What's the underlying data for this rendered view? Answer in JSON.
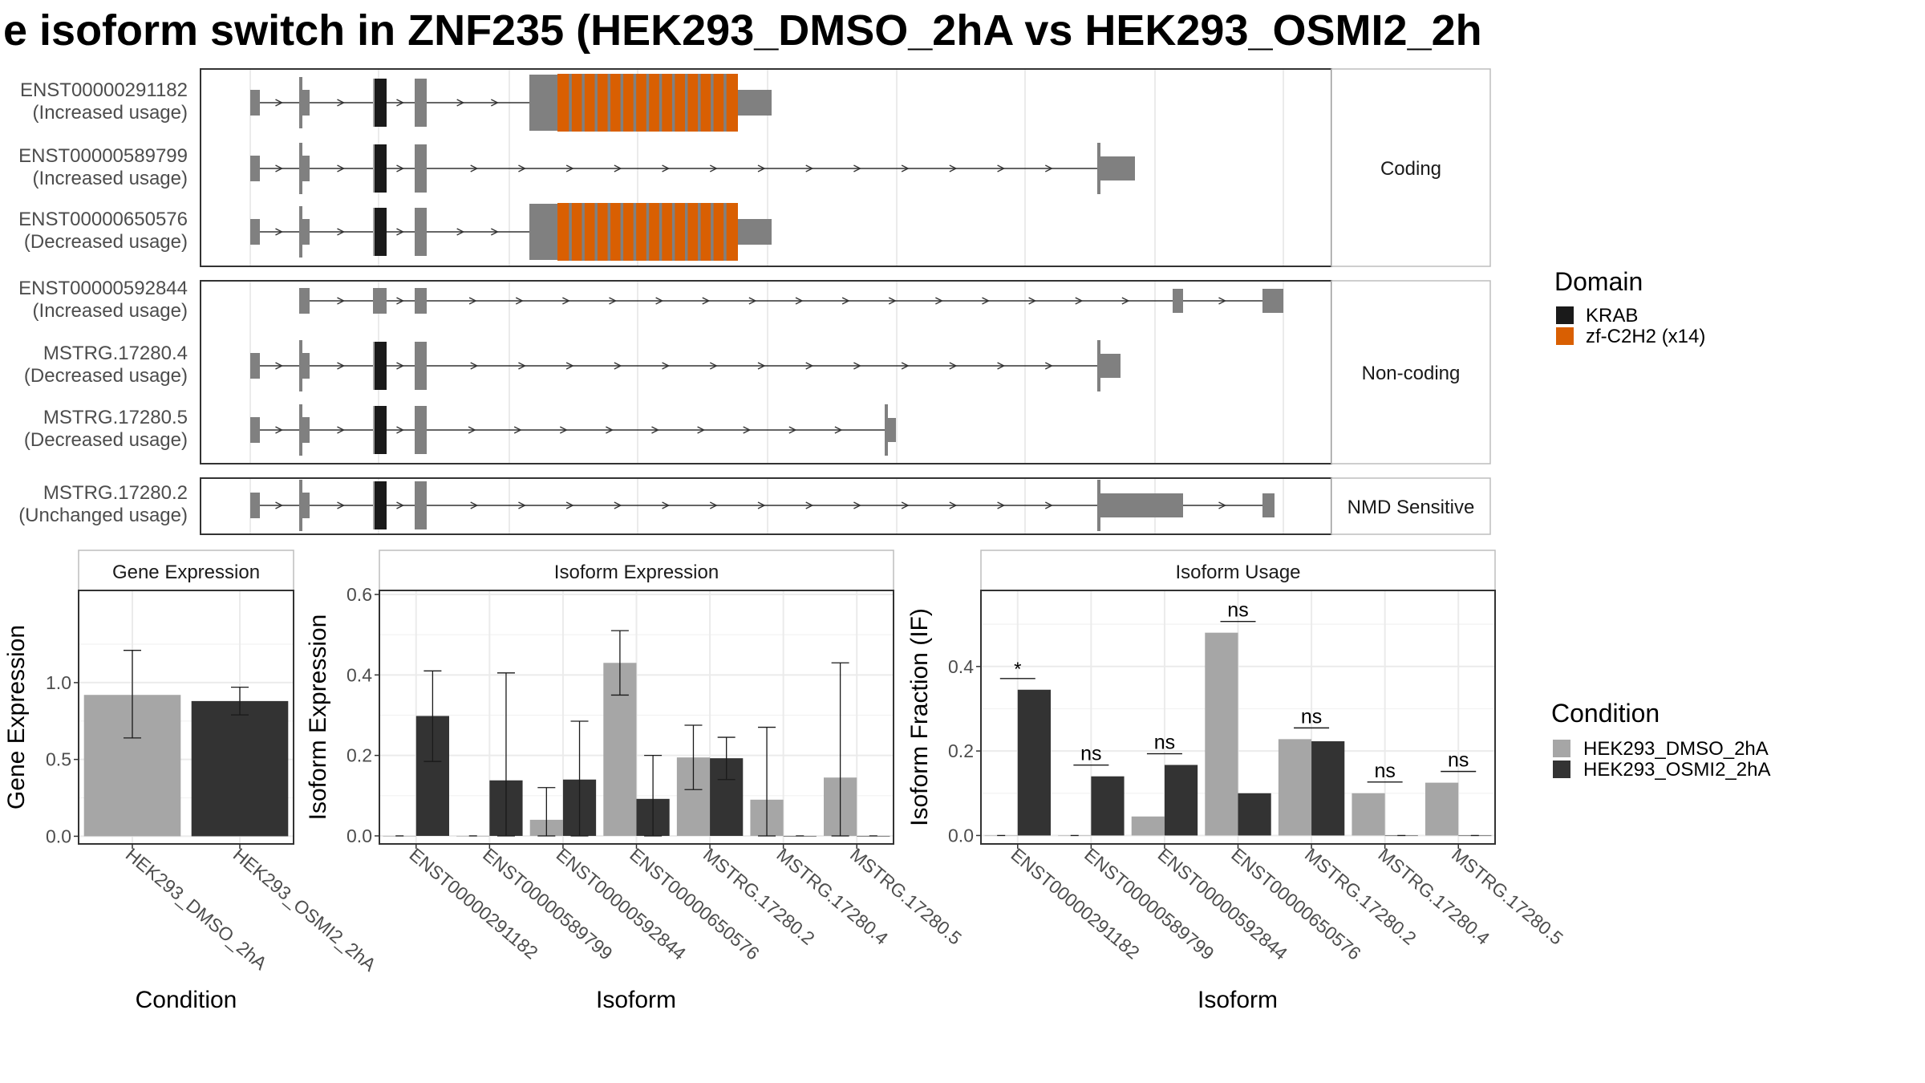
{
  "title": "e isoform switch in ZNF235 (HEK293_DMSO_2hA vs HEK293_OSMI2_2h",
  "colors": {
    "exon": "#808080",
    "krab": "#1a1a1a",
    "zf": "#d95f02",
    "dmso": "#a6a6a6",
    "osmi": "#333333",
    "panel_border": "#333333",
    "grid": "#ebebeb",
    "strip_bg": "#ffffff"
  },
  "structure": {
    "groups": [
      {
        "label": "Coding",
        "transcripts": [
          {
            "id": "ENST00000291182",
            "usage": "(Increased usage)",
            "end": "long",
            "domains": true
          },
          {
            "id": "ENST00000589799",
            "usage": "(Increased usage)",
            "end": "far",
            "domains": false
          },
          {
            "id": "ENST00000650576",
            "usage": "(Decreased usage)",
            "end": "long",
            "domains": true
          }
        ]
      },
      {
        "label": "Non-coding",
        "transcripts": [
          {
            "id": "ENST00000592844",
            "usage": "(Increased usage)",
            "end": "592844",
            "domains": false
          },
          {
            "id": "MSTRG.17280.4",
            "usage": "(Decreased usage)",
            "end": "far_short",
            "domains": false
          },
          {
            "id": "MSTRG.17280.5",
            "usage": "(Decreased usage)",
            "end": "mid",
            "domains": false
          }
        ]
      },
      {
        "label": "NMD Sensitive",
        "transcripts": [
          {
            "id": "MSTRG.17280.2",
            "usage": "(Unchanged usage)",
            "end": "nmd",
            "domains": false
          }
        ]
      }
    ],
    "legend_title": "Domain",
    "legend": [
      {
        "label": "KRAB",
        "color": "#1a1a1a"
      },
      {
        "label": "zf-C2H2 (x14)",
        "color": "#d95f02"
      }
    ]
  },
  "condition_legend": {
    "title": "Condition",
    "items": [
      {
        "label": "HEK293_DMSO_2hA",
        "color": "#a6a6a6"
      },
      {
        "label": "HEK293_OSMI2_2hA",
        "color": "#333333"
      }
    ]
  },
  "chart_data": [
    {
      "type": "bar",
      "strip": "Gene Expression",
      "xlabel": "Condition",
      "ylabel": "Gene Expression",
      "ylim": [
        -0.05,
        1.6
      ],
      "yticks": [
        0.0,
        0.5,
        1.0
      ],
      "ytick_labels": [
        "0.0",
        "0.5",
        "1.0"
      ],
      "categories": [
        "HEK293_DMSO_2hA",
        "HEK293_OSMI2_2hA"
      ],
      "series": [
        {
          "values": [
            0.92,
            0.88
          ],
          "err_low": [
            0.64,
            0.79
          ],
          "err_high": [
            1.21,
            0.97
          ]
        }
      ]
    },
    {
      "type": "bar",
      "strip": "Isoform Expression",
      "xlabel": "Isoform",
      "ylabel": "Isoform Expression",
      "ylim": [
        -0.02,
        0.61
      ],
      "yticks": [
        0.0,
        0.2,
        0.4,
        0.6
      ],
      "ytick_labels": [
        "0.0",
        "0.2",
        "0.4",
        "0.6"
      ],
      "categories": [
        "ENST00000291182",
        "ENST00000589799",
        "ENST00000592844",
        "ENST00000650576",
        "MSTRG.17280.2",
        "MSTRG.17280.4",
        "MSTRG.17280.5"
      ],
      "series": [
        {
          "name": "HEK293_DMSO_2hA",
          "values": [
            0.0,
            0.0,
            0.04,
            0.43,
            0.195,
            0.09,
            0.145
          ],
          "err_low": [
            null,
            null,
            0.0,
            0.35,
            0.115,
            0.0,
            0.0
          ],
          "err_high": [
            null,
            null,
            0.12,
            0.51,
            0.275,
            0.27,
            0.43
          ]
        },
        {
          "name": "HEK293_OSMI2_2hA",
          "values": [
            0.298,
            0.138,
            0.14,
            0.092,
            0.193,
            0.0,
            0.0
          ],
          "err_low": [
            0.185,
            0.0,
            0.0,
            0.0,
            0.14,
            null,
            null
          ],
          "err_high": [
            0.41,
            0.405,
            0.285,
            0.2,
            0.245,
            null,
            null
          ]
        }
      ]
    },
    {
      "type": "bar",
      "strip": "Isoform Usage",
      "xlabel": "Isoform",
      "ylabel": "Isoform Fraction (IF)",
      "ylim": [
        -0.02,
        0.58
      ],
      "yticks": [
        0.0,
        0.2,
        0.4
      ],
      "ytick_labels": [
        "0.0",
        "0.2",
        "0.4"
      ],
      "categories": [
        "ENST00000291182",
        "ENST00000589799",
        "ENST00000592844",
        "ENST00000650576",
        "MSTRG.17280.2",
        "MSTRG.17280.4",
        "MSTRG.17280.5"
      ],
      "series": [
        {
          "name": "HEK293_DMSO_2hA",
          "values": [
            0.0,
            0.0,
            0.045,
            0.48,
            0.228,
            0.1,
            0.125
          ]
        },
        {
          "name": "HEK293_OSMI2_2hA",
          "values": [
            0.345,
            0.14,
            0.167,
            0.1,
            0.223,
            0.0,
            0.0
          ]
        }
      ],
      "significance": [
        "*",
        "ns",
        "ns",
        "ns",
        "ns",
        "ns",
        "ns"
      ]
    }
  ]
}
